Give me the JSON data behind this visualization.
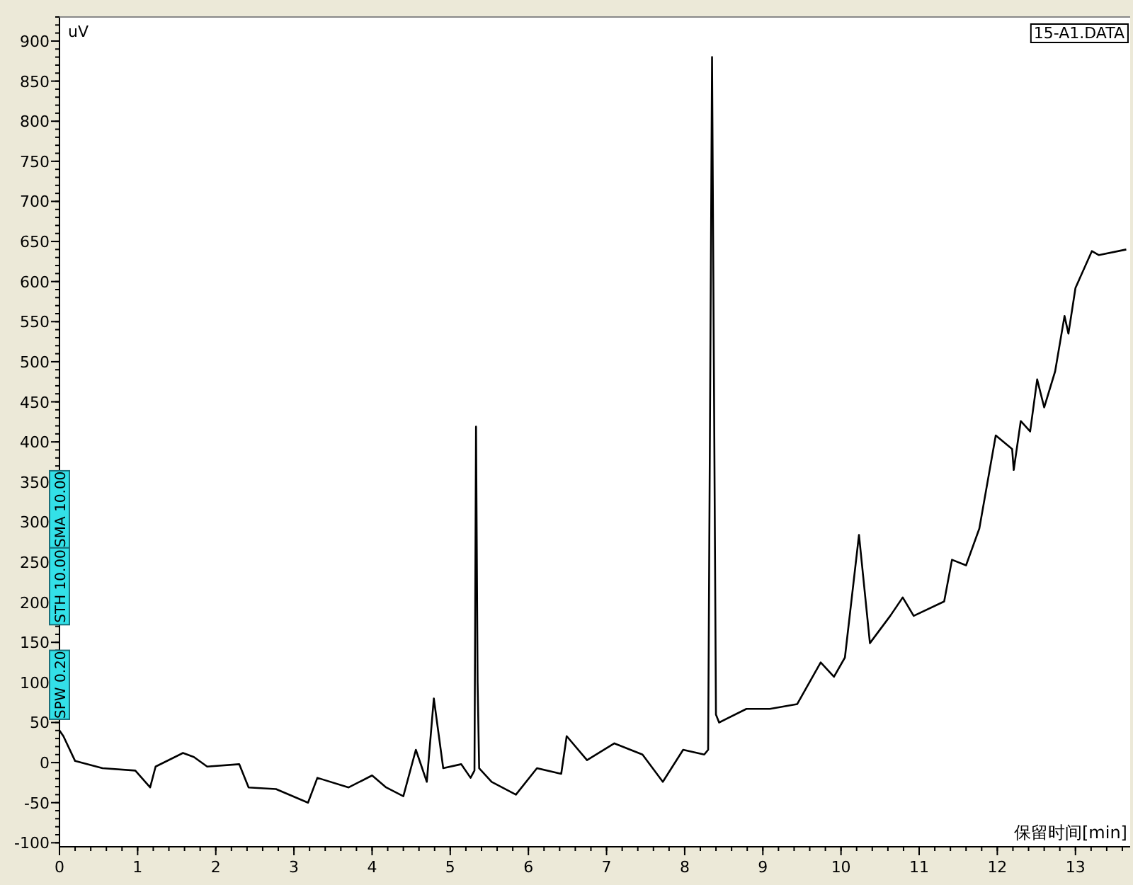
{
  "chart_data": {
    "type": "line",
    "xlabel": "保留时间[min]",
    "ylabel": "uV",
    "color": "#000000",
    "xlim": [
      0,
      13.7
    ],
    "ylim": [
      -105,
      930
    ],
    "xticks": [
      0,
      1,
      2,
      3,
      4,
      5,
      6,
      7,
      8,
      9,
      10,
      11,
      12,
      13
    ],
    "yticks": [
      -100,
      -50,
      0,
      50,
      100,
      150,
      200,
      250,
      300,
      350,
      400,
      450,
      500,
      550,
      600,
      650,
      700,
      750,
      800,
      850,
      900
    ],
    "annotations": [
      "15-A1.DATA",
      "STH 10.00",
      "SMA 10.00",
      "SPW 0.20"
    ],
    "x": [
      0,
      0.05,
      0.2,
      0.55,
      0.97,
      1.16,
      1.23,
      1.58,
      1.72,
      1.89,
      2.3,
      2.42,
      2.77,
      3.18,
      3.3,
      3.7,
      4.0,
      4.18,
      4.4,
      4.56,
      4.7,
      4.79,
      4.91,
      5.14,
      5.26,
      5.31,
      5.33,
      5.35,
      5.37,
      5.53,
      5.84,
      6.11,
      6.42,
      6.49,
      6.75,
      7.1,
      7.46,
      7.72,
      7.98,
      8.25,
      8.3,
      8.35,
      8.4,
      8.44,
      8.79,
      9.09,
      9.44,
      9.74,
      9.91,
      10.05,
      10.23,
      10.37,
      10.63,
      10.79,
      10.93,
      11.32,
      11.42,
      11.6,
      11.77,
      11.98,
      12.19,
      12.21,
      12.3,
      12.42,
      12.51,
      12.6,
      12.74,
      12.86,
      12.91,
      13.0,
      13.21,
      13.3,
      13.65
    ],
    "values": [
      40,
      33,
      2,
      -7,
      -10,
      -31,
      -5,
      12,
      7,
      -5,
      -2,
      -31,
      -33,
      -50,
      -19,
      -31,
      -16,
      -31,
      -42,
      16,
      -24,
      80,
      -7,
      -2,
      -19,
      -10,
      419,
      100,
      -7,
      -24,
      -40,
      -7,
      -14,
      33,
      3,
      24,
      10,
      -24,
      16,
      10,
      16,
      880,
      60,
      50,
      67,
      67,
      73,
      125,
      107,
      131,
      284,
      149,
      183,
      206,
      183,
      201,
      253,
      246,
      292,
      408,
      391,
      365,
      426,
      413,
      478,
      443,
      488,
      557,
      535,
      592,
      638,
      633,
      640
    ]
  }
}
